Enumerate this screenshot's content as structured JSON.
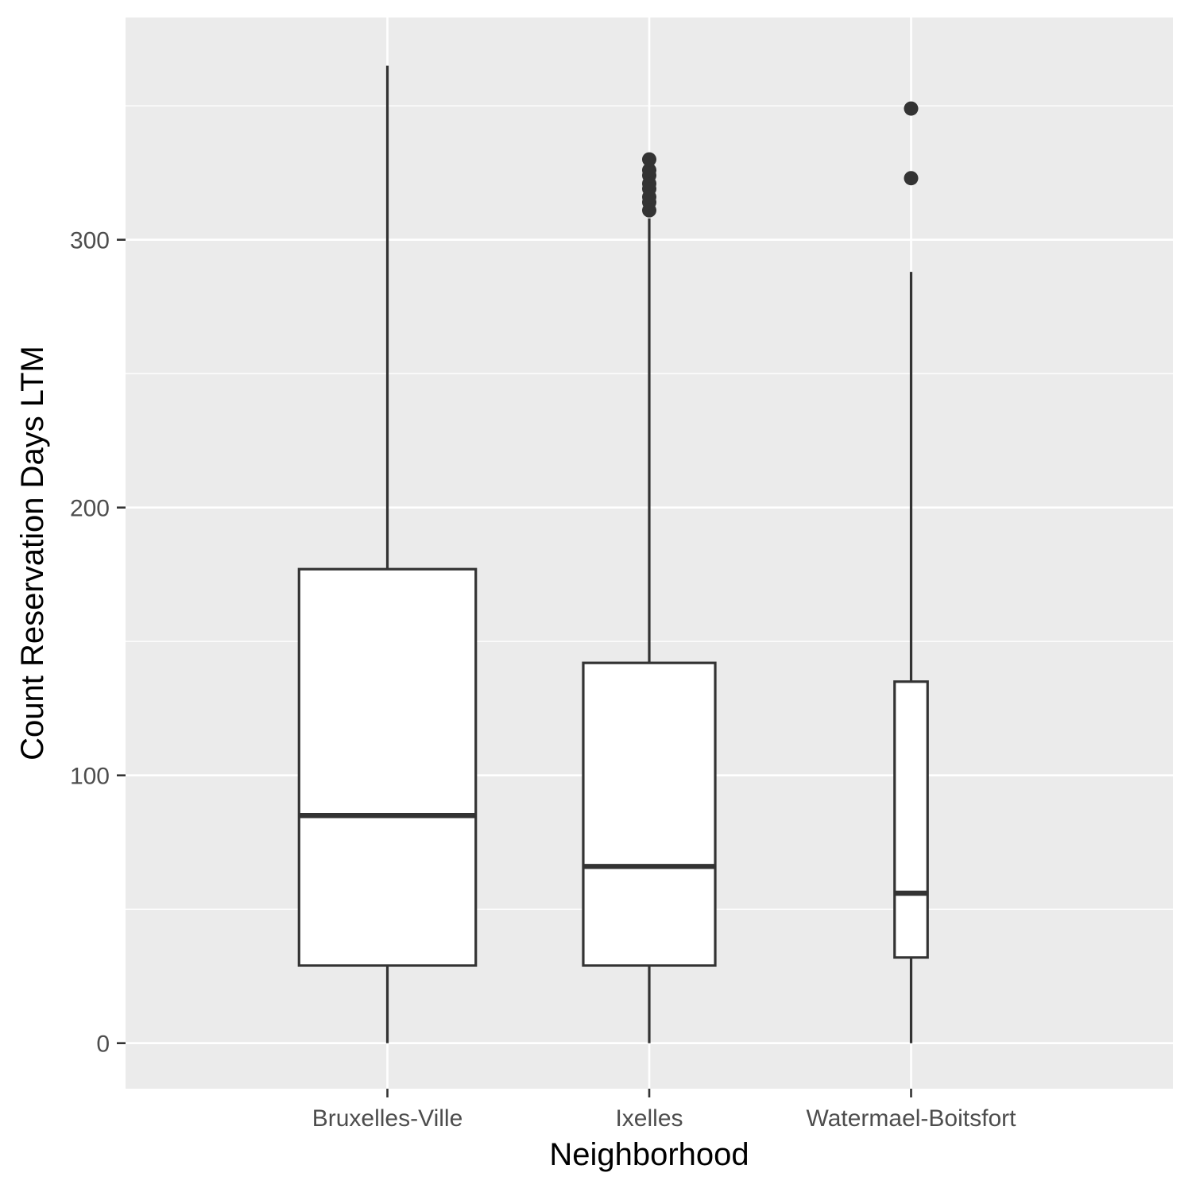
{
  "chart_data": {
    "type": "boxplot",
    "title": "",
    "xlabel": "Neighborhood",
    "ylabel": "Count Reservation Days LTM",
    "ylim": [
      -17,
      383
    ],
    "yticks": [
      0,
      100,
      200,
      300
    ],
    "grid": true,
    "categories": [
      "Bruxelles-Ville",
      "Ixelles",
      "Watermael-Boitsfort"
    ],
    "boxes": [
      {
        "category": "Bruxelles-Ville",
        "min": 0,
        "q1": 29,
        "median": 85,
        "q3": 177,
        "max": 365,
        "outliers": [],
        "relative_width": 0.75
      },
      {
        "category": "Ixelles",
        "min": 0,
        "q1": 29,
        "median": 66,
        "q3": 142,
        "max": 308,
        "outliers": [
          311,
          314,
          316,
          319,
          321,
          324,
          326,
          330
        ],
        "relative_width": 0.56
      },
      {
        "category": "Watermael-Boitsfort",
        "min": 0,
        "q1": 32,
        "median": 56,
        "q3": 135,
        "max": 288,
        "outliers": [
          323,
          349
        ],
        "relative_width": 0.14
      }
    ],
    "colors": {
      "panel": "#ebebeb",
      "grid": "#ffffff",
      "box_fill": "#ffffff",
      "box_stroke": "#333333",
      "axis_text": "#4d4d4d",
      "title_text": "#000000"
    }
  }
}
